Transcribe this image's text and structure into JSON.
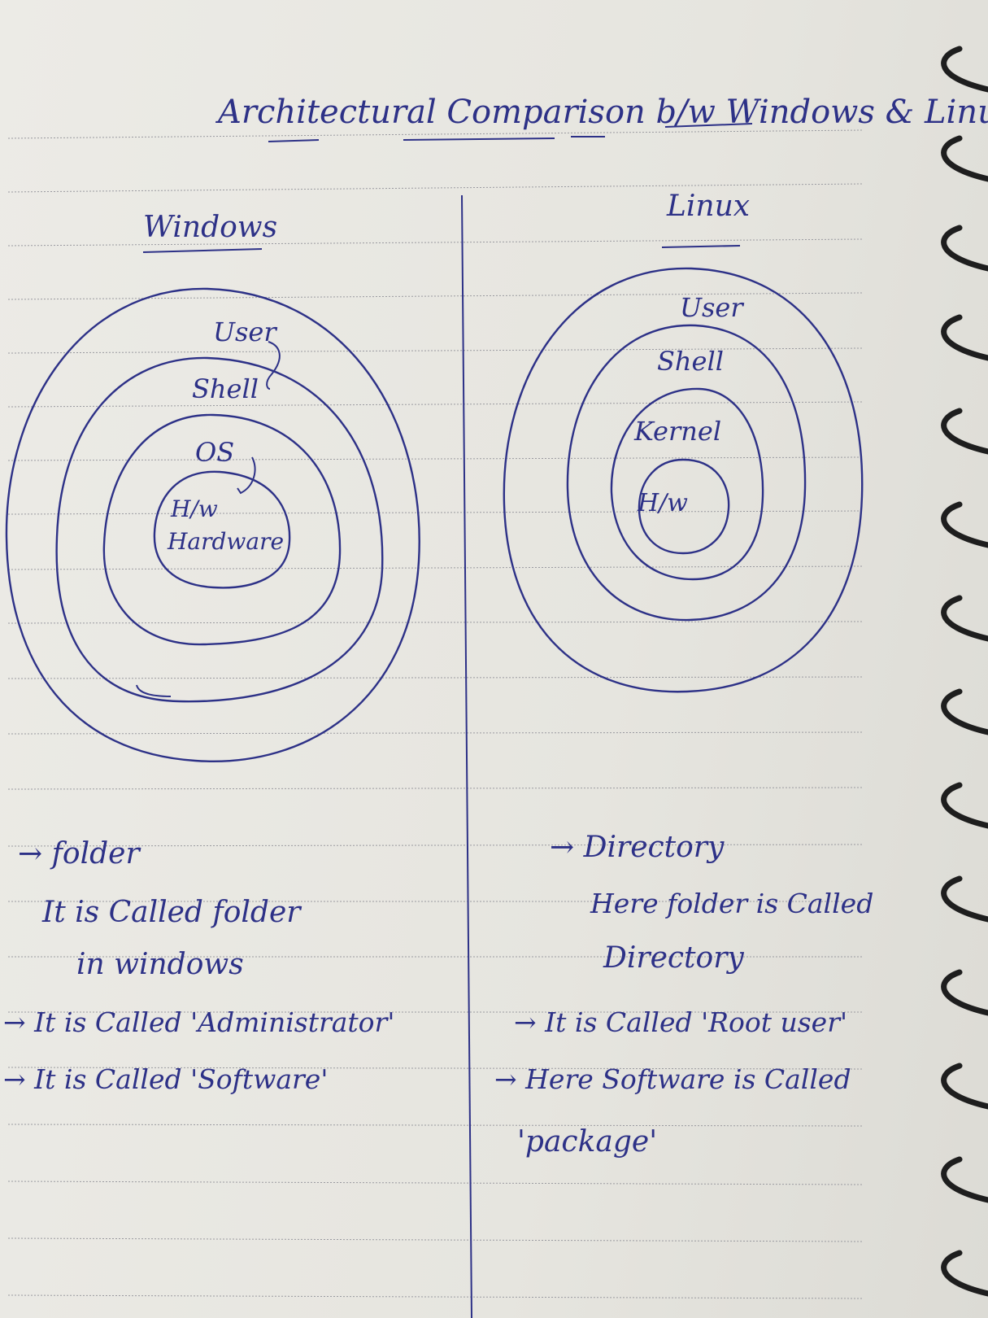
{
  "title": "Architectural Comparison b/w Windows & Linux",
  "windows": {
    "heading": "Windows",
    "layers": [
      "User",
      "Shell",
      "OS",
      "H/w",
      "Hardware"
    ],
    "notes": [
      "→ folder",
      "It is Called folder",
      "in windows",
      "→ It is Called 'Administrator'",
      "→ It is Called 'Software'"
    ]
  },
  "linux": {
    "heading": "Linux",
    "layers": [
      "User",
      "Shell",
      "Kernel",
      "H/w"
    ],
    "notes": [
      "→ Directory",
      "Here folder is Called",
      "Directory",
      "→ It is Called 'Root user'",
      "→ Here Software is Called",
      "'package'"
    ]
  },
  "colors": {
    "ink": "#2d3187",
    "paper": "#e9e8e3",
    "rules": "#9a9aa0"
  }
}
